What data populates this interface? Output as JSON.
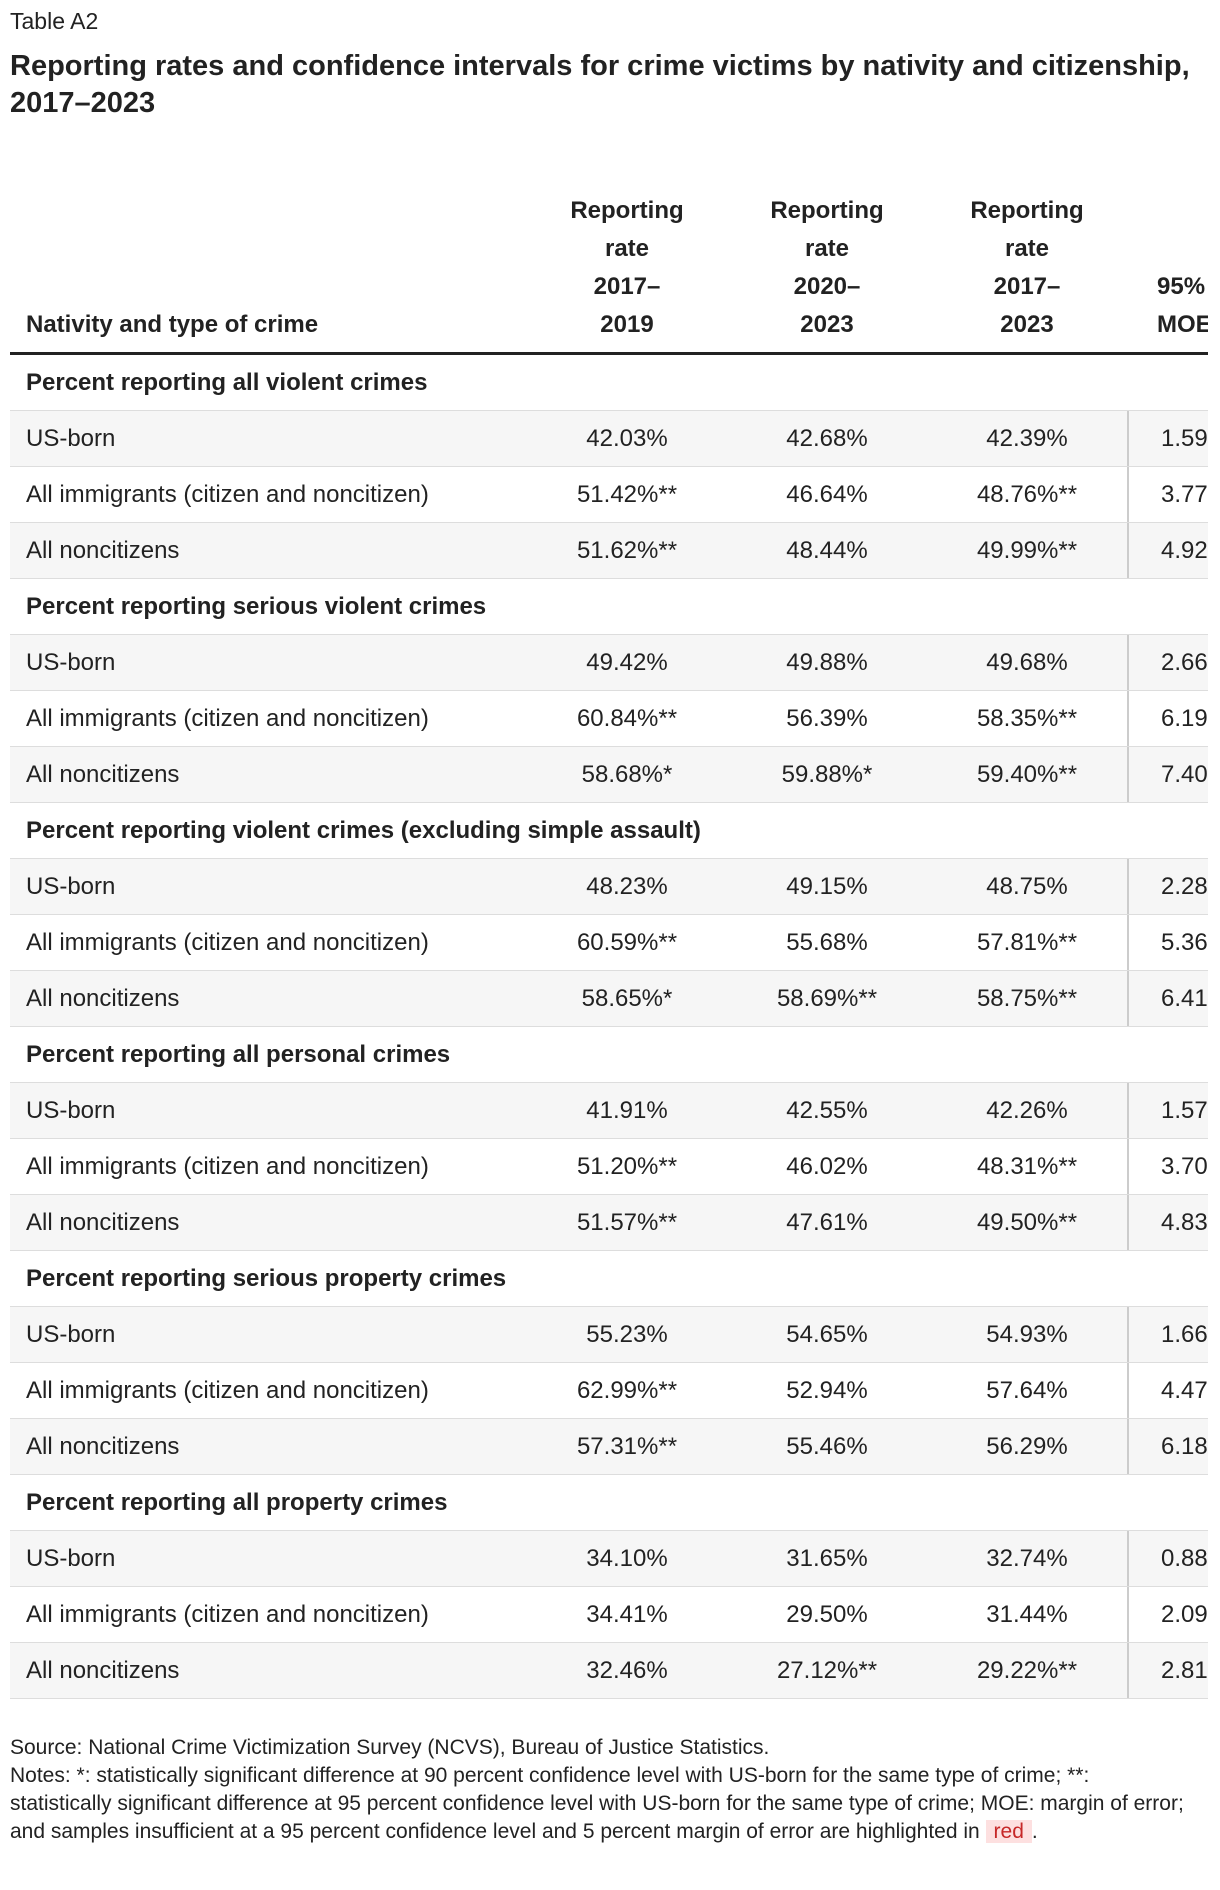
{
  "header": {
    "label": "Table A2",
    "title": "Reporting rates and confidence intervals for crime victims by nativity and citizenship, 2017–2023"
  },
  "table": {
    "columns": [
      "Nativity and type of crime",
      "Reporting\nrate\n2017–\n2019",
      "Reporting\nrate\n2020–\n2023",
      "Reporting\nrate\n2017–\n2023",
      "95%\nMOE"
    ],
    "sections": [
      {
        "title": "Percent reporting all violent crimes",
        "rows": [
          [
            "US-born",
            "42.03%",
            "42.68%",
            "42.39%",
            "1.59"
          ],
          [
            "All immigrants (citizen and noncitizen)",
            "51.42%**",
            "46.64%",
            "48.76%**",
            "3.77"
          ],
          [
            "All noncitizens",
            "51.62%**",
            "48.44%",
            "49.99%**",
            "4.92"
          ]
        ]
      },
      {
        "title": "Percent reporting serious violent crimes",
        "rows": [
          [
            "US-born",
            "49.42%",
            "49.88%",
            "49.68%",
            "2.66"
          ],
          [
            "All immigrants (citizen and noncitizen)",
            "60.84%**",
            "56.39%",
            "58.35%**",
            "6.19"
          ],
          [
            "All noncitizens",
            "58.68%*",
            "59.88%*",
            "59.40%**",
            "7.40"
          ]
        ]
      },
      {
        "title": "Percent reporting violent crimes (excluding simple assault)",
        "rows": [
          [
            "US-born",
            "48.23%",
            "49.15%",
            "48.75%",
            "2.28"
          ],
          [
            "All immigrants (citizen and noncitizen)",
            "60.59%**",
            "55.68%",
            "57.81%**",
            "5.36"
          ],
          [
            "All noncitizens",
            "58.65%*",
            "58.69%**",
            "58.75%**",
            "6.41"
          ]
        ]
      },
      {
        "title": "Percent reporting all personal crimes",
        "rows": [
          [
            "US-born",
            "41.91%",
            "42.55%",
            "42.26%",
            "1.57"
          ],
          [
            "All immigrants (citizen and noncitizen)",
            "51.20%**",
            "46.02%",
            "48.31%**",
            "3.70"
          ],
          [
            "All noncitizens",
            "51.57%**",
            "47.61%",
            "49.50%**",
            "4.83"
          ]
        ]
      },
      {
        "title": "Percent reporting serious property crimes",
        "rows": [
          [
            "US-born",
            "55.23%",
            "54.65%",
            "54.93%",
            "1.66"
          ],
          [
            "All immigrants (citizen and noncitizen)",
            "62.99%**",
            "52.94%",
            "57.64%",
            "4.47"
          ],
          [
            "All noncitizens",
            "57.31%**",
            "55.46%",
            "56.29%",
            "6.18"
          ]
        ]
      },
      {
        "title": "Percent reporting all property crimes",
        "rows": [
          [
            "US-born",
            "34.10%",
            "31.65%",
            "32.74%",
            "0.88"
          ],
          [
            "All immigrants (citizen and noncitizen)",
            "34.41%",
            "29.50%",
            "31.44%",
            "2.09"
          ],
          [
            "All noncitizens",
            "32.46%",
            "27.12%**",
            "29.22%**",
            "2.81"
          ]
        ]
      }
    ]
  },
  "footer": {
    "source": "Source: National Crime Victimization Survey (NCVS), Bureau of Justice Statistics.",
    "notes": "Notes: *: statistically significant difference at 90 percent confidence level with US-born for the same type of crime; **: statistically significant difference at 95 percent confidence level with US-born for the same type of crime; MOE: margin of error; and samples insufficient at a 95 percent confidence level and 5 percent margin of error are highlighted in",
    "highlight": "red",
    "end": "."
  }
}
